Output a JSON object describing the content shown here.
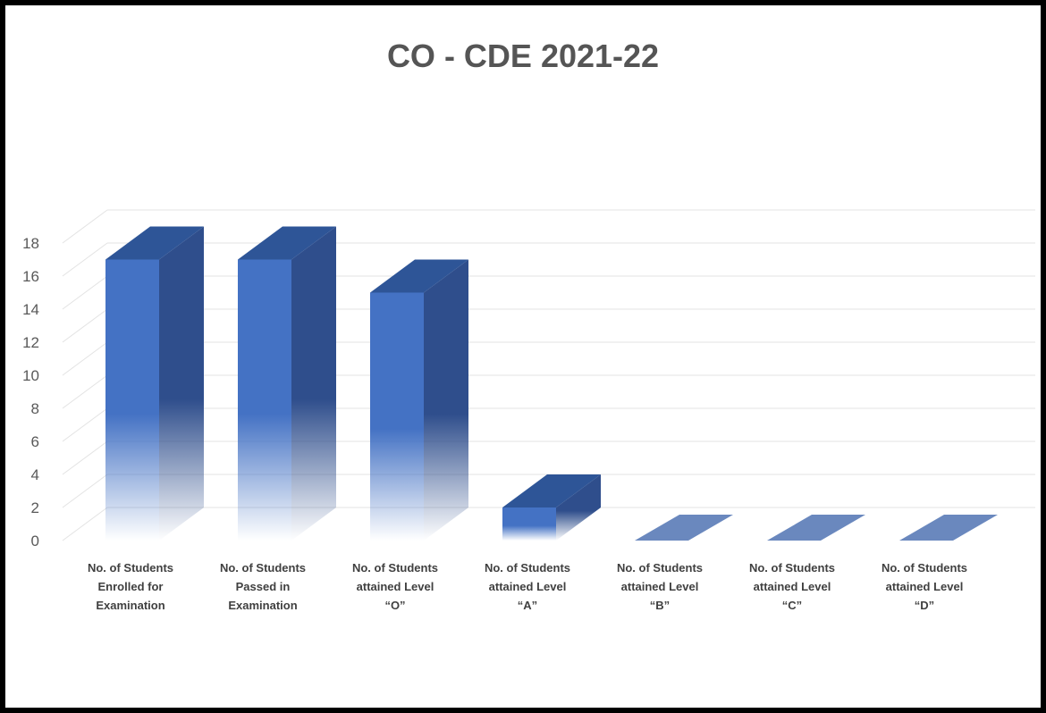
{
  "chart_data": {
    "type": "bar",
    "title": "CO - CDE 2021-22",
    "categories": [
      [
        "No. of Students",
        "Enrolled for",
        "Examination"
      ],
      [
        "No. of Students",
        "Passed in",
        "Examination"
      ],
      [
        "No. of Students",
        "attained Level",
        "“O”"
      ],
      [
        "No. of Students",
        "attained Level",
        "“A”"
      ],
      [
        "No. of Students",
        "attained Level",
        "“B”"
      ],
      [
        "No. of Students",
        "attained Level",
        "“C”"
      ],
      [
        "No. of Students",
        "attained Level",
        "“D”"
      ]
    ],
    "values": [
      17,
      17,
      15,
      2,
      0,
      0,
      0
    ],
    "ylim": [
      0,
      18
    ],
    "yticks": [
      0,
      2,
      4,
      6,
      8,
      10,
      12,
      14,
      16,
      18
    ],
    "grid": true,
    "legend": "none",
    "colors": {
      "front": "#4472C4",
      "side": "#2F4E8C",
      "top": "#2E5597",
      "zero": "#6A88BE"
    }
  }
}
